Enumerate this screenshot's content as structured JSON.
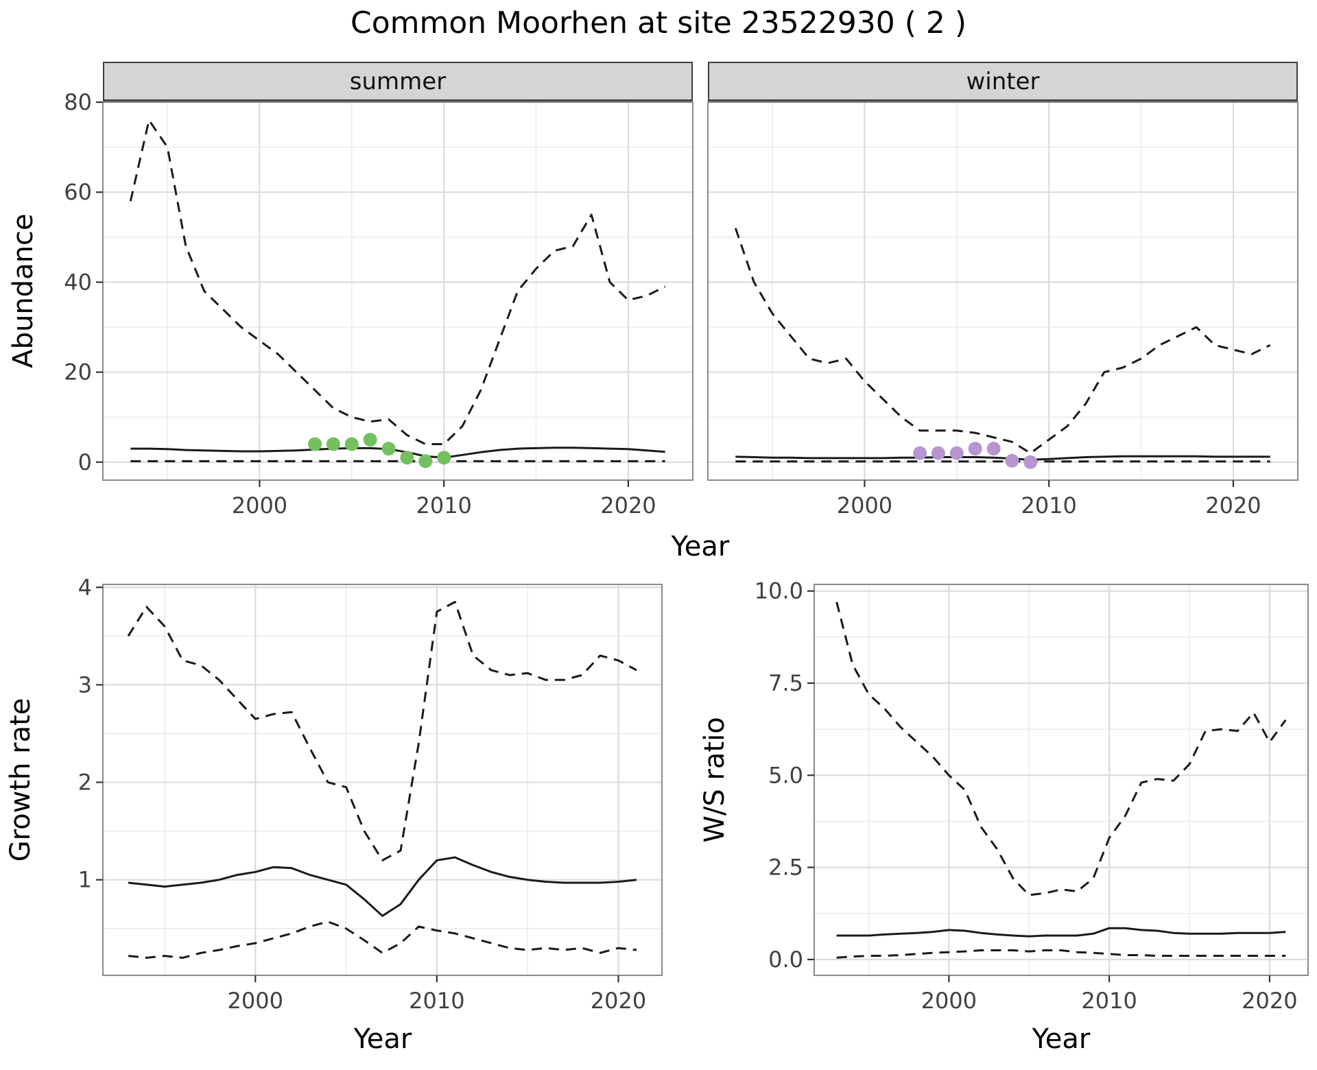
{
  "title": "Common Moorhen at site 23522930 ( 2 )",
  "facets": {
    "summer": "summer",
    "winter": "winter"
  },
  "axis_labels": {
    "abundance": "Abundance",
    "top_year": "Year",
    "growth_rate": "Growth rate",
    "growth_year": "Year",
    "ws_ratio": "W/S ratio",
    "ws_year": "Year"
  },
  "colors": {
    "line": "#1a1a1a",
    "grid_major": "#dcdcdc",
    "grid_minor": "#ececec",
    "panel_border": "#8a8a8a",
    "tick": "#333333",
    "strip_bg": "#d5d5d5",
    "summer_points": "#74c05e",
    "winter_points": "#b795ce"
  },
  "chart_data": [
    {
      "id": "abundance-summer",
      "type": "line",
      "facet": "summer",
      "xlabel": "Year",
      "ylabel": "Abundance",
      "xlim": [
        1991.5,
        2023.5
      ],
      "ylim": [
        -4,
        80
      ],
      "xticks": {
        "values": [
          2000,
          2010,
          2020
        ],
        "labels": [
          "2000",
          "2010",
          "2020"
        ]
      },
      "yticks": {
        "values": [
          0,
          20,
          40,
          60,
          80
        ],
        "labels": [
          "0",
          "20",
          "40",
          "60",
          "80"
        ]
      },
      "xminor": [
        1995,
        2005,
        2015
      ],
      "yminor": [
        10,
        30,
        50,
        70
      ],
      "x": [
        1993,
        1994,
        1995,
        1996,
        1997,
        1998,
        1999,
        2000,
        2001,
        2002,
        2003,
        2004,
        2005,
        2006,
        2007,
        2008,
        2009,
        2010,
        2011,
        2012,
        2013,
        2014,
        2015,
        2016,
        2017,
        2018,
        2019,
        2020,
        2021,
        2022
      ],
      "series": [
        {
          "name": "upper-ci",
          "style": "dashed",
          "values": [
            58,
            76,
            70,
            48,
            38,
            34,
            30,
            27,
            24,
            20,
            16,
            12,
            10,
            9,
            9.5,
            6,
            4,
            4,
            8,
            16,
            27,
            38,
            43,
            47,
            48,
            55,
            40,
            36,
            37,
            39
          ]
        },
        {
          "name": "median",
          "style": "solid",
          "values": [
            3,
            3,
            2.9,
            2.7,
            2.6,
            2.5,
            2.4,
            2.4,
            2.5,
            2.6,
            2.8,
            3,
            3.1,
            3.1,
            2.9,
            2.2,
            1.3,
            1,
            1.6,
            2.2,
            2.7,
            3,
            3.1,
            3.2,
            3.2,
            3.1,
            3,
            2.9,
            2.6,
            2.3
          ]
        },
        {
          "name": "lower-ci",
          "style": "dashed",
          "values": [
            0.2,
            0.2,
            0.2,
            0.2,
            0.2,
            0.2,
            0.2,
            0.2,
            0.2,
            0.2,
            0.2,
            0.2,
            0.2,
            0.2,
            0.2,
            0.2,
            0.2,
            0.2,
            0.2,
            0.2,
            0.2,
            0.2,
            0.2,
            0.2,
            0.2,
            0.2,
            0.2,
            0.2,
            0.2,
            0.2
          ]
        }
      ],
      "observations": {
        "x": [
          2003,
          2004,
          2005,
          2006,
          2007,
          2008,
          2009,
          2010
        ],
        "y": [
          4,
          4,
          4,
          5,
          3,
          1,
          0.2,
          1
        ],
        "color": "#74c05e"
      }
    },
    {
      "id": "abundance-winter",
      "type": "line",
      "facet": "winter",
      "xlabel": "Year",
      "ylabel": "Abundance",
      "xlim": [
        1991.5,
        2023.5
      ],
      "ylim": [
        -4,
        80
      ],
      "xticks": {
        "values": [
          2000,
          2010,
          2020
        ],
        "labels": [
          "2000",
          "2010",
          "2020"
        ]
      },
      "yticks": {
        "values": [
          0,
          20,
          40,
          60,
          80
        ],
        "labels": [
          "0",
          "20",
          "40",
          "60",
          "80"
        ]
      },
      "xminor": [
        1995,
        2005,
        2015
      ],
      "yminor": [
        10,
        30,
        50,
        70
      ],
      "x": [
        1993,
        1994,
        1995,
        1996,
        1997,
        1998,
        1999,
        2000,
        2001,
        2002,
        2003,
        2004,
        2005,
        2006,
        2007,
        2008,
        2009,
        2010,
        2011,
        2012,
        2013,
        2014,
        2015,
        2016,
        2017,
        2018,
        2019,
        2020,
        2021,
        2022
      ],
      "series": [
        {
          "name": "upper-ci",
          "style": "dashed",
          "values": [
            52,
            40,
            33,
            28,
            23,
            22,
            23,
            18,
            14,
            10,
            7,
            7,
            7,
            6.5,
            5.5,
            4.5,
            2,
            5,
            8,
            13,
            20,
            21,
            23,
            26,
            28,
            30,
            26,
            25,
            24,
            26
          ]
        },
        {
          "name": "median",
          "style": "solid",
          "values": [
            1.2,
            1.1,
            1,
            1,
            0.9,
            0.9,
            0.9,
            0.9,
            0.9,
            1,
            1,
            1.1,
            1.1,
            1.1,
            1,
            0.8,
            0.5,
            0.7,
            0.9,
            1.1,
            1.2,
            1.3,
            1.3,
            1.3,
            1.3,
            1.3,
            1.2,
            1.2,
            1.2,
            1.2
          ]
        },
        {
          "name": "lower-ci",
          "style": "dashed",
          "values": [
            0.15,
            0.15,
            0.15,
            0.15,
            0.15,
            0.15,
            0.15,
            0.15,
            0.15,
            0.15,
            0.15,
            0.15,
            0.15,
            0.15,
            0.15,
            0.15,
            0.15,
            0.15,
            0.15,
            0.15,
            0.15,
            0.15,
            0.15,
            0.15,
            0.15,
            0.15,
            0.15,
            0.15,
            0.15,
            0.15
          ]
        }
      ],
      "observations": {
        "x": [
          2003,
          2004,
          2005,
          2006,
          2007,
          2008,
          2009
        ],
        "y": [
          2,
          2,
          2,
          3,
          3,
          0.3,
          0
        ],
        "color": "#b795ce"
      }
    },
    {
      "id": "growth-rate",
      "type": "line",
      "xlabel": "Year",
      "ylabel": "Growth rate",
      "xlim": [
        1991.6,
        2022.4
      ],
      "ylim": [
        0.02,
        4.03
      ],
      "xticks": {
        "values": [
          2000,
          2010,
          2020
        ],
        "labels": [
          "2000",
          "2010",
          "2020"
        ]
      },
      "yticks": {
        "values": [
          1,
          2,
          3,
          4
        ],
        "labels": [
          "1",
          "2",
          "3",
          "4"
        ]
      },
      "xminor": [
        1995,
        2005,
        2015
      ],
      "yminor": [
        0.5,
        1.5,
        2.5,
        3.5
      ],
      "x": [
        1993,
        1994,
        1995,
        1996,
        1997,
        1998,
        1999,
        2000,
        2001,
        2002,
        2003,
        2004,
        2005,
        2006,
        2007,
        2008,
        2009,
        2010,
        2011,
        2012,
        2013,
        2014,
        2015,
        2016,
        2017,
        2018,
        2019,
        2020,
        2021
      ],
      "series": [
        {
          "name": "upper-ci",
          "style": "dashed",
          "values": [
            3.5,
            3.8,
            3.6,
            3.25,
            3.2,
            3.05,
            2.85,
            2.65,
            2.7,
            2.72,
            2.35,
            2.0,
            1.95,
            1.5,
            1.2,
            1.3,
            2.4,
            3.75,
            3.85,
            3.3,
            3.15,
            3.1,
            3.12,
            3.05,
            3.05,
            3.1,
            3.3,
            3.25,
            3.15
          ]
        },
        {
          "name": "median",
          "style": "solid",
          "values": [
            0.97,
            0.95,
            0.93,
            0.95,
            0.97,
            1.0,
            1.05,
            1.08,
            1.13,
            1.12,
            1.05,
            1.0,
            0.95,
            0.8,
            0.63,
            0.75,
            1.0,
            1.2,
            1.23,
            1.15,
            1.08,
            1.03,
            1.0,
            0.98,
            0.97,
            0.97,
            0.97,
            0.98,
            1.0
          ]
        },
        {
          "name": "lower-ci",
          "style": "dashed",
          "values": [
            0.22,
            0.2,
            0.22,
            0.2,
            0.25,
            0.28,
            0.32,
            0.35,
            0.4,
            0.45,
            0.52,
            0.57,
            0.5,
            0.38,
            0.25,
            0.35,
            0.52,
            0.48,
            0.45,
            0.4,
            0.35,
            0.3,
            0.28,
            0.3,
            0.28,
            0.3,
            0.25,
            0.3,
            0.28
          ]
        }
      ],
      "observations": null
    },
    {
      "id": "ws-ratio",
      "type": "line",
      "xlabel": "Year",
      "ylabel": "W/S ratio",
      "xlim": [
        1991.6,
        2022.4
      ],
      "ylim": [
        -0.43,
        10.18
      ],
      "xticks": {
        "values": [
          2000,
          2010,
          2020
        ],
        "labels": [
          "2000",
          "2010",
          "2020"
        ]
      },
      "yticks": {
        "values": [
          0,
          2.5,
          5,
          7.5,
          10
        ],
        "labels": [
          "0.0",
          "2.5",
          "5.0",
          "7.5",
          "10.0"
        ]
      },
      "xminor": [
        1995,
        2005,
        2015
      ],
      "yminor": [
        1.25,
        3.75,
        6.25,
        8.75
      ],
      "x": [
        1993,
        1994,
        1995,
        1996,
        1997,
        1998,
        1999,
        2000,
        2001,
        2002,
        2003,
        2004,
        2005,
        2006,
        2007,
        2008,
        2009,
        2010,
        2011,
        2012,
        2013,
        2014,
        2015,
        2016,
        2017,
        2018,
        2019,
        2020,
        2021
      ],
      "series": [
        {
          "name": "upper-ci",
          "style": "dashed",
          "values": [
            9.7,
            8.0,
            7.2,
            6.8,
            6.3,
            5.9,
            5.5,
            5.0,
            4.6,
            3.6,
            3.0,
            2.2,
            1.75,
            1.8,
            1.9,
            1.85,
            2.2,
            3.3,
            3.9,
            4.8,
            4.9,
            4.85,
            5.3,
            6.2,
            6.25,
            6.2,
            6.7,
            5.9,
            6.5
          ]
        },
        {
          "name": "median",
          "style": "solid",
          "values": [
            0.65,
            0.65,
            0.65,
            0.68,
            0.7,
            0.72,
            0.75,
            0.8,
            0.78,
            0.72,
            0.68,
            0.65,
            0.63,
            0.65,
            0.65,
            0.65,
            0.7,
            0.85,
            0.85,
            0.8,
            0.78,
            0.72,
            0.7,
            0.7,
            0.7,
            0.72,
            0.72,
            0.72,
            0.75
          ]
        },
        {
          "name": "lower-ci",
          "style": "dashed",
          "values": [
            0.05,
            0.08,
            0.1,
            0.1,
            0.12,
            0.15,
            0.18,
            0.2,
            0.22,
            0.25,
            0.25,
            0.25,
            0.22,
            0.25,
            0.25,
            0.2,
            0.18,
            0.15,
            0.12,
            0.12,
            0.1,
            0.1,
            0.1,
            0.1,
            0.1,
            0.1,
            0.1,
            0.1,
            0.1
          ]
        }
      ],
      "observations": null
    }
  ]
}
